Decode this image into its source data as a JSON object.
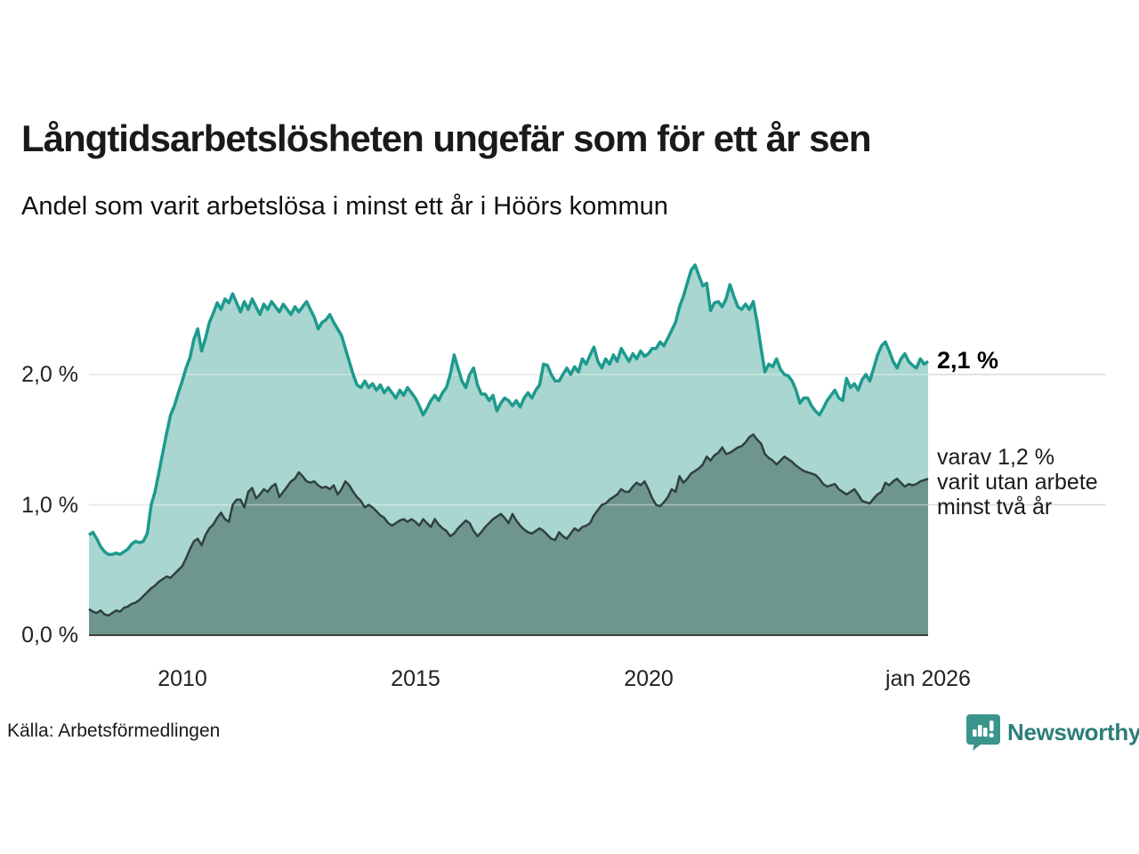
{
  "header": {
    "title": "Långtidsarbetslösheten ungefär som för ett år sen",
    "subtitle": "Andel som varit arbetslösa i minst ett år i Höörs kommun"
  },
  "chart_data": {
    "type": "area",
    "title": "Långtidsarbetslösheten ungefär som för ett år sen",
    "subtitle": "Andel som varit arbetslösa i minst ett år i Höörs kommun",
    "unit": "%",
    "x_start": "jan 2008",
    "x_end": "jan 2026",
    "x_tick_labels": [
      "2010",
      "2015",
      "2020",
      "jan 2026"
    ],
    "y_tick_labels": [
      "0,0 %",
      "1,0 %",
      "2,0 %"
    ],
    "ylim": [
      0,
      3.0
    ],
    "grid": "horizontal",
    "legend_position": "right-annotations",
    "annotations": {
      "total_end_label": "2,1 %",
      "two_year_end_lines": [
        "varav 1,2 %",
        "varit utan arbete",
        "minst två år"
      ]
    },
    "series": [
      {
        "name": "arbetslösa minst ett år (totalt)",
        "line_color": "#1d9a8d",
        "fill_color": "#a9d6d0",
        "end_value": 2.1,
        "values": [
          0.77,
          0.79,
          0.74,
          0.68,
          0.64,
          0.62,
          0.62,
          0.63,
          0.62,
          0.64,
          0.66,
          0.7,
          0.72,
          0.71,
          0.72,
          0.78,
          1.0,
          1.1,
          1.25,
          1.4,
          1.55,
          1.69,
          1.76,
          1.86,
          1.95,
          2.05,
          2.13,
          2.27,
          2.35,
          2.18,
          2.28,
          2.4,
          2.47,
          2.55,
          2.5,
          2.58,
          2.55,
          2.62,
          2.55,
          2.48,
          2.56,
          2.5,
          2.58,
          2.52,
          2.46,
          2.54,
          2.5,
          2.56,
          2.52,
          2.48,
          2.54,
          2.5,
          2.46,
          2.52,
          2.48,
          2.52,
          2.56,
          2.5,
          2.44,
          2.35,
          2.4,
          2.42,
          2.46,
          2.4,
          2.35,
          2.3,
          2.2,
          2.1,
          2.0,
          1.92,
          1.9,
          1.95,
          1.9,
          1.93,
          1.88,
          1.92,
          1.86,
          1.9,
          1.86,
          1.82,
          1.88,
          1.84,
          1.9,
          1.86,
          1.82,
          1.76,
          1.69,
          1.74,
          1.8,
          1.84,
          1.8,
          1.86,
          1.9,
          2.0,
          2.15,
          2.05,
          1.95,
          1.9,
          2.0,
          2.05,
          1.92,
          1.85,
          1.85,
          1.8,
          1.84,
          1.72,
          1.78,
          1.82,
          1.8,
          1.76,
          1.8,
          1.75,
          1.82,
          1.86,
          1.82,
          1.88,
          1.92,
          2.08,
          2.07,
          2.0,
          1.95,
          1.95,
          2.0,
          2.05,
          2.0,
          2.06,
          2.02,
          2.12,
          2.08,
          2.15,
          2.21,
          2.1,
          2.05,
          2.12,
          2.08,
          2.15,
          2.1,
          2.2,
          2.15,
          2.1,
          2.16,
          2.12,
          2.18,
          2.14,
          2.16,
          2.2,
          2.2,
          2.25,
          2.22,
          2.28,
          2.34,
          2.4,
          2.52,
          2.6,
          2.7,
          2.8,
          2.84,
          2.76,
          2.68,
          2.7,
          2.49,
          2.55,
          2.56,
          2.52,
          2.58,
          2.69,
          2.6,
          2.52,
          2.5,
          2.54,
          2.5,
          2.56,
          2.4,
          2.2,
          2.02,
          2.08,
          2.06,
          2.12,
          2.04,
          2.0,
          1.99,
          1.95,
          1.88,
          1.78,
          1.82,
          1.82,
          1.76,
          1.72,
          1.69,
          1.74,
          1.8,
          1.84,
          1.88,
          1.82,
          1.8,
          1.97,
          1.9,
          1.93,
          1.88,
          1.96,
          2.0,
          1.95,
          2.05,
          2.15,
          2.22,
          2.25,
          2.18,
          2.1,
          2.05,
          2.12,
          2.16,
          2.1,
          2.07,
          2.05,
          2.12,
          2.08,
          2.1
        ]
      },
      {
        "name": "varav utan arbete minst två år",
        "line_color": "#30413e",
        "fill_color": "#6e968f",
        "end_value": 1.2,
        "values": [
          0.2,
          0.18,
          0.17,
          0.19,
          0.16,
          0.15,
          0.17,
          0.19,
          0.18,
          0.21,
          0.22,
          0.24,
          0.25,
          0.27,
          0.3,
          0.33,
          0.36,
          0.38,
          0.41,
          0.43,
          0.45,
          0.44,
          0.47,
          0.5,
          0.53,
          0.59,
          0.66,
          0.72,
          0.74,
          0.69,
          0.77,
          0.82,
          0.85,
          0.9,
          0.94,
          0.89,
          0.87,
          1.0,
          1.04,
          1.04,
          0.98,
          1.1,
          1.13,
          1.05,
          1.08,
          1.12,
          1.1,
          1.14,
          1.16,
          1.06,
          1.1,
          1.14,
          1.18,
          1.2,
          1.25,
          1.22,
          1.18,
          1.17,
          1.18,
          1.15,
          1.13,
          1.14,
          1.12,
          1.15,
          1.08,
          1.12,
          1.18,
          1.15,
          1.1,
          1.06,
          1.03,
          0.98,
          1.0,
          0.98,
          0.95,
          0.92,
          0.9,
          0.86,
          0.84,
          0.86,
          0.88,
          0.89,
          0.87,
          0.89,
          0.87,
          0.84,
          0.89,
          0.86,
          0.83,
          0.89,
          0.85,
          0.82,
          0.8,
          0.76,
          0.78,
          0.82,
          0.85,
          0.88,
          0.86,
          0.8,
          0.76,
          0.79,
          0.83,
          0.86,
          0.89,
          0.91,
          0.93,
          0.9,
          0.86,
          0.93,
          0.88,
          0.84,
          0.81,
          0.79,
          0.78,
          0.8,
          0.82,
          0.8,
          0.77,
          0.74,
          0.73,
          0.79,
          0.76,
          0.74,
          0.78,
          0.82,
          0.8,
          0.83,
          0.84,
          0.86,
          0.92,
          0.96,
          1.0,
          1.01,
          1.04,
          1.06,
          1.08,
          1.12,
          1.1,
          1.1,
          1.14,
          1.17,
          1.15,
          1.18,
          1.12,
          1.05,
          1.0,
          0.99,
          1.02,
          1.06,
          1.12,
          1.1,
          1.22,
          1.17,
          1.2,
          1.24,
          1.26,
          1.28,
          1.31,
          1.37,
          1.34,
          1.38,
          1.4,
          1.44,
          1.39,
          1.4,
          1.42,
          1.44,
          1.45,
          1.48,
          1.52,
          1.54,
          1.5,
          1.47,
          1.39,
          1.36,
          1.34,
          1.31,
          1.34,
          1.37,
          1.35,
          1.33,
          1.3,
          1.28,
          1.26,
          1.25,
          1.24,
          1.23,
          1.2,
          1.16,
          1.14,
          1.15,
          1.16,
          1.12,
          1.1,
          1.08,
          1.1,
          1.12,
          1.08,
          1.03,
          1.02,
          1.01,
          1.05,
          1.08,
          1.1,
          1.17,
          1.15,
          1.18,
          1.2,
          1.17,
          1.14,
          1.16,
          1.15,
          1.16,
          1.18,
          1.19,
          1.2
        ]
      }
    ]
  },
  "footer": {
    "source": "Källa: Arbetsförmedlingen",
    "brand": "Newsworthy"
  },
  "colors": {
    "total_line": "#1d9a8d",
    "total_fill": "#a9d6d0",
    "two_year_line": "#30413e",
    "two_year_fill": "#6e968f",
    "gridline": "#d8d8d8",
    "baseline": "#3f3f3f",
    "brand_teal": "#2c7d78",
    "logo_bubble": "#3a948c"
  }
}
